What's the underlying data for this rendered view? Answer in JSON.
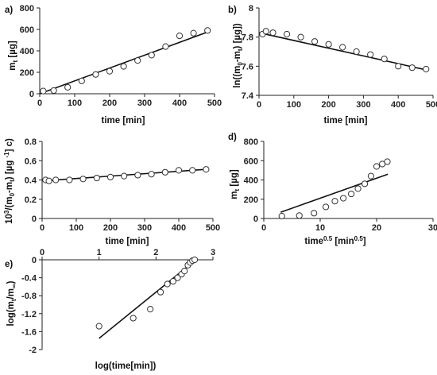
{
  "chart_data": [
    {
      "id": "a",
      "type": "scatter",
      "panel_label": "a)",
      "xlabel": "time [min]",
      "ylabel_html": "m<tspan font-size='8' dy='3'>t</tspan><tspan dy='-3'> [µg]</tspan>",
      "ylabel": "mt [µg]",
      "xlim": [
        0,
        500
      ],
      "ylim": [
        0,
        800
      ],
      "xticks": [
        0,
        100,
        200,
        300,
        400,
        500
      ],
      "yticks": [
        0,
        200,
        400,
        600,
        800
      ],
      "x": [
        10,
        40,
        80,
        120,
        160,
        200,
        240,
        280,
        320,
        360,
        400,
        440,
        480
      ],
      "y": [
        25,
        30,
        60,
        120,
        180,
        210,
        255,
        310,
        360,
        440,
        540,
        565,
        590
      ],
      "fit": {
        "x": [
          0,
          480
        ],
        "y": [
          0,
          575
        ]
      }
    },
    {
      "id": "b",
      "type": "scatter",
      "panel_label": "b)",
      "xlabel": "time [min]",
      "ylabel": "ln((m0-mt) [µg])",
      "xlim": [
        0,
        500
      ],
      "ylim": [
        7.4,
        8.0
      ],
      "xticks": [
        0,
        100,
        200,
        300,
        400,
        500
      ],
      "yticks": [
        7.4,
        7.6,
        7.8,
        8.0
      ],
      "yticklabels": [
        "7.4",
        "7.6",
        "7.8",
        "8"
      ],
      "x": [
        10,
        20,
        40,
        80,
        120,
        160,
        200,
        240,
        280,
        320,
        360,
        400,
        440,
        480
      ],
      "y": [
        7.82,
        7.84,
        7.83,
        7.82,
        7.8,
        7.77,
        7.75,
        7.73,
        7.7,
        7.68,
        7.65,
        7.6,
        7.59,
        7.58
      ],
      "fit": {
        "x": [
          0,
          480
        ],
        "y": [
          7.83,
          7.575
        ]
      }
    },
    {
      "id": "c",
      "type": "scatter",
      "panel_label": "c)",
      "xlabel": "time [min]",
      "ylabel": "10³/(m0-mt) [µg -1]",
      "xlim": [
        0,
        500
      ],
      "ylim": [
        0,
        0.8
      ],
      "xticks": [
        0,
        100,
        200,
        300,
        400,
        500
      ],
      "yticks": [
        0,
        0.2,
        0.4,
        0.6,
        0.8
      ],
      "x": [
        10,
        20,
        40,
        80,
        120,
        160,
        200,
        240,
        280,
        320,
        360,
        400,
        440,
        480
      ],
      "y": [
        0.4,
        0.39,
        0.4,
        0.4,
        0.41,
        0.42,
        0.43,
        0.44,
        0.45,
        0.46,
        0.48,
        0.5,
        0.5,
        0.51
      ],
      "fit": {
        "x": [
          0,
          480
        ],
        "y": [
          0.39,
          0.51
        ]
      }
    },
    {
      "id": "d",
      "type": "scatter",
      "panel_label": "d)",
      "xlabel": "time0.5 [min0.5]",
      "ylabel": "mt [µg]",
      "xlim": [
        0,
        30
      ],
      "ylim": [
        0,
        800
      ],
      "xticks": [
        0,
        10,
        20,
        30
      ],
      "yticks": [
        0,
        200,
        400,
        600,
        800
      ],
      "x": [
        3.2,
        6.3,
        8.9,
        11.0,
        12.6,
        14.1,
        15.5,
        16.7,
        17.9,
        19.0,
        20.0,
        21.0,
        21.9
      ],
      "y": [
        25,
        30,
        55,
        120,
        180,
        210,
        255,
        310,
        360,
        440,
        540,
        565,
        590
      ],
      "fit": {
        "x": [
          3,
          22
        ],
        "y": [
          65,
          460
        ]
      }
    },
    {
      "id": "e",
      "type": "scatter",
      "panel_label": "e)",
      "xlabel": "log(time[min])",
      "ylabel": "log(mt/m∞)",
      "xlim": [
        0,
        3
      ],
      "ylim": [
        -2,
        0
      ],
      "xticks": [
        0,
        1,
        2,
        3
      ],
      "yticks": [
        0,
        -0.4,
        -0.8,
        -1.2,
        -1.6,
        -2
      ],
      "x": [
        1.0,
        1.6,
        1.9,
        2.08,
        2.2,
        2.3,
        2.38,
        2.45,
        2.5,
        2.56,
        2.6,
        2.64,
        2.68
      ],
      "y": [
        -1.48,
        -1.3,
        -1.1,
        -0.72,
        -0.54,
        -0.48,
        -0.4,
        -0.32,
        -0.25,
        -0.12,
        -0.06,
        -0.02,
        0.0
      ],
      "fit": {
        "x": [
          1.0,
          2.7
        ],
        "y": [
          -1.75,
          0.0
        ]
      }
    }
  ]
}
